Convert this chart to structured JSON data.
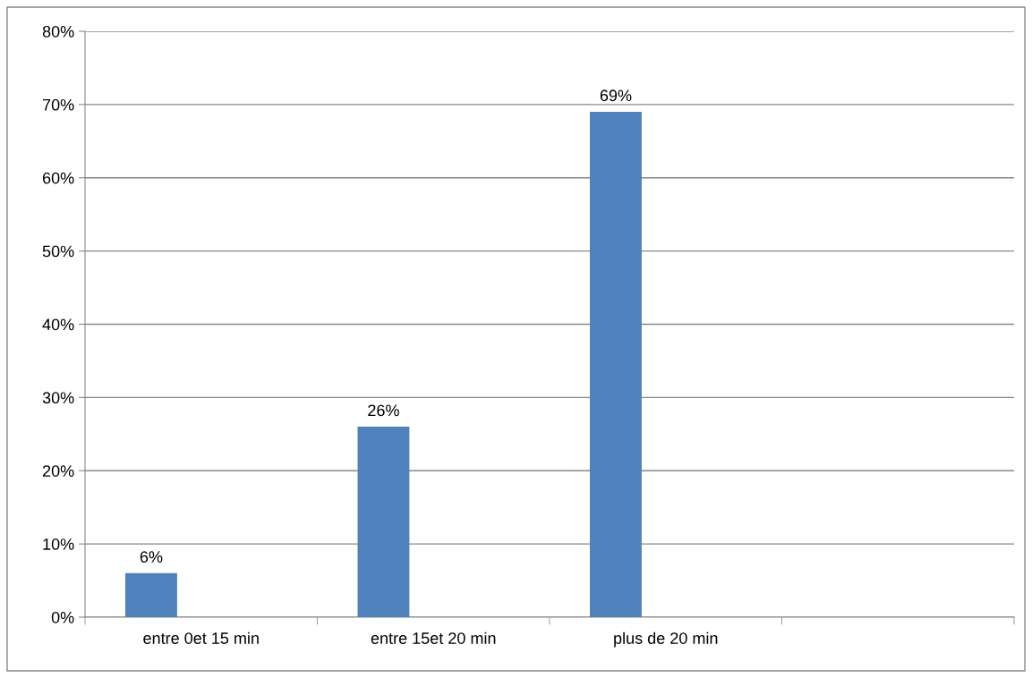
{
  "chart_data": {
    "type": "bar",
    "categories": [
      "entre 0et 15 min",
      "entre 15et 20 min",
      "plus de 20 min",
      null
    ],
    "values": [
      6,
      26,
      69,
      null
    ],
    "value_labels": [
      "6%",
      "26%",
      "69%",
      null
    ],
    "color": "#4f81bd",
    "ylim": [
      0,
      80
    ],
    "yticks": [
      {
        "value": 0,
        "label": "0%"
      },
      {
        "value": 10,
        "label": "10%"
      },
      {
        "value": 20,
        "label": "20%"
      },
      {
        "value": 30,
        "label": "30%"
      },
      {
        "value": 40,
        "label": "40%"
      },
      {
        "value": 50,
        "label": "50%"
      },
      {
        "value": 60,
        "label": "60%"
      },
      {
        "value": 70,
        "label": "70%"
      },
      {
        "value": 80,
        "label": "80%"
      }
    ],
    "grid": "y",
    "legend": false
  }
}
